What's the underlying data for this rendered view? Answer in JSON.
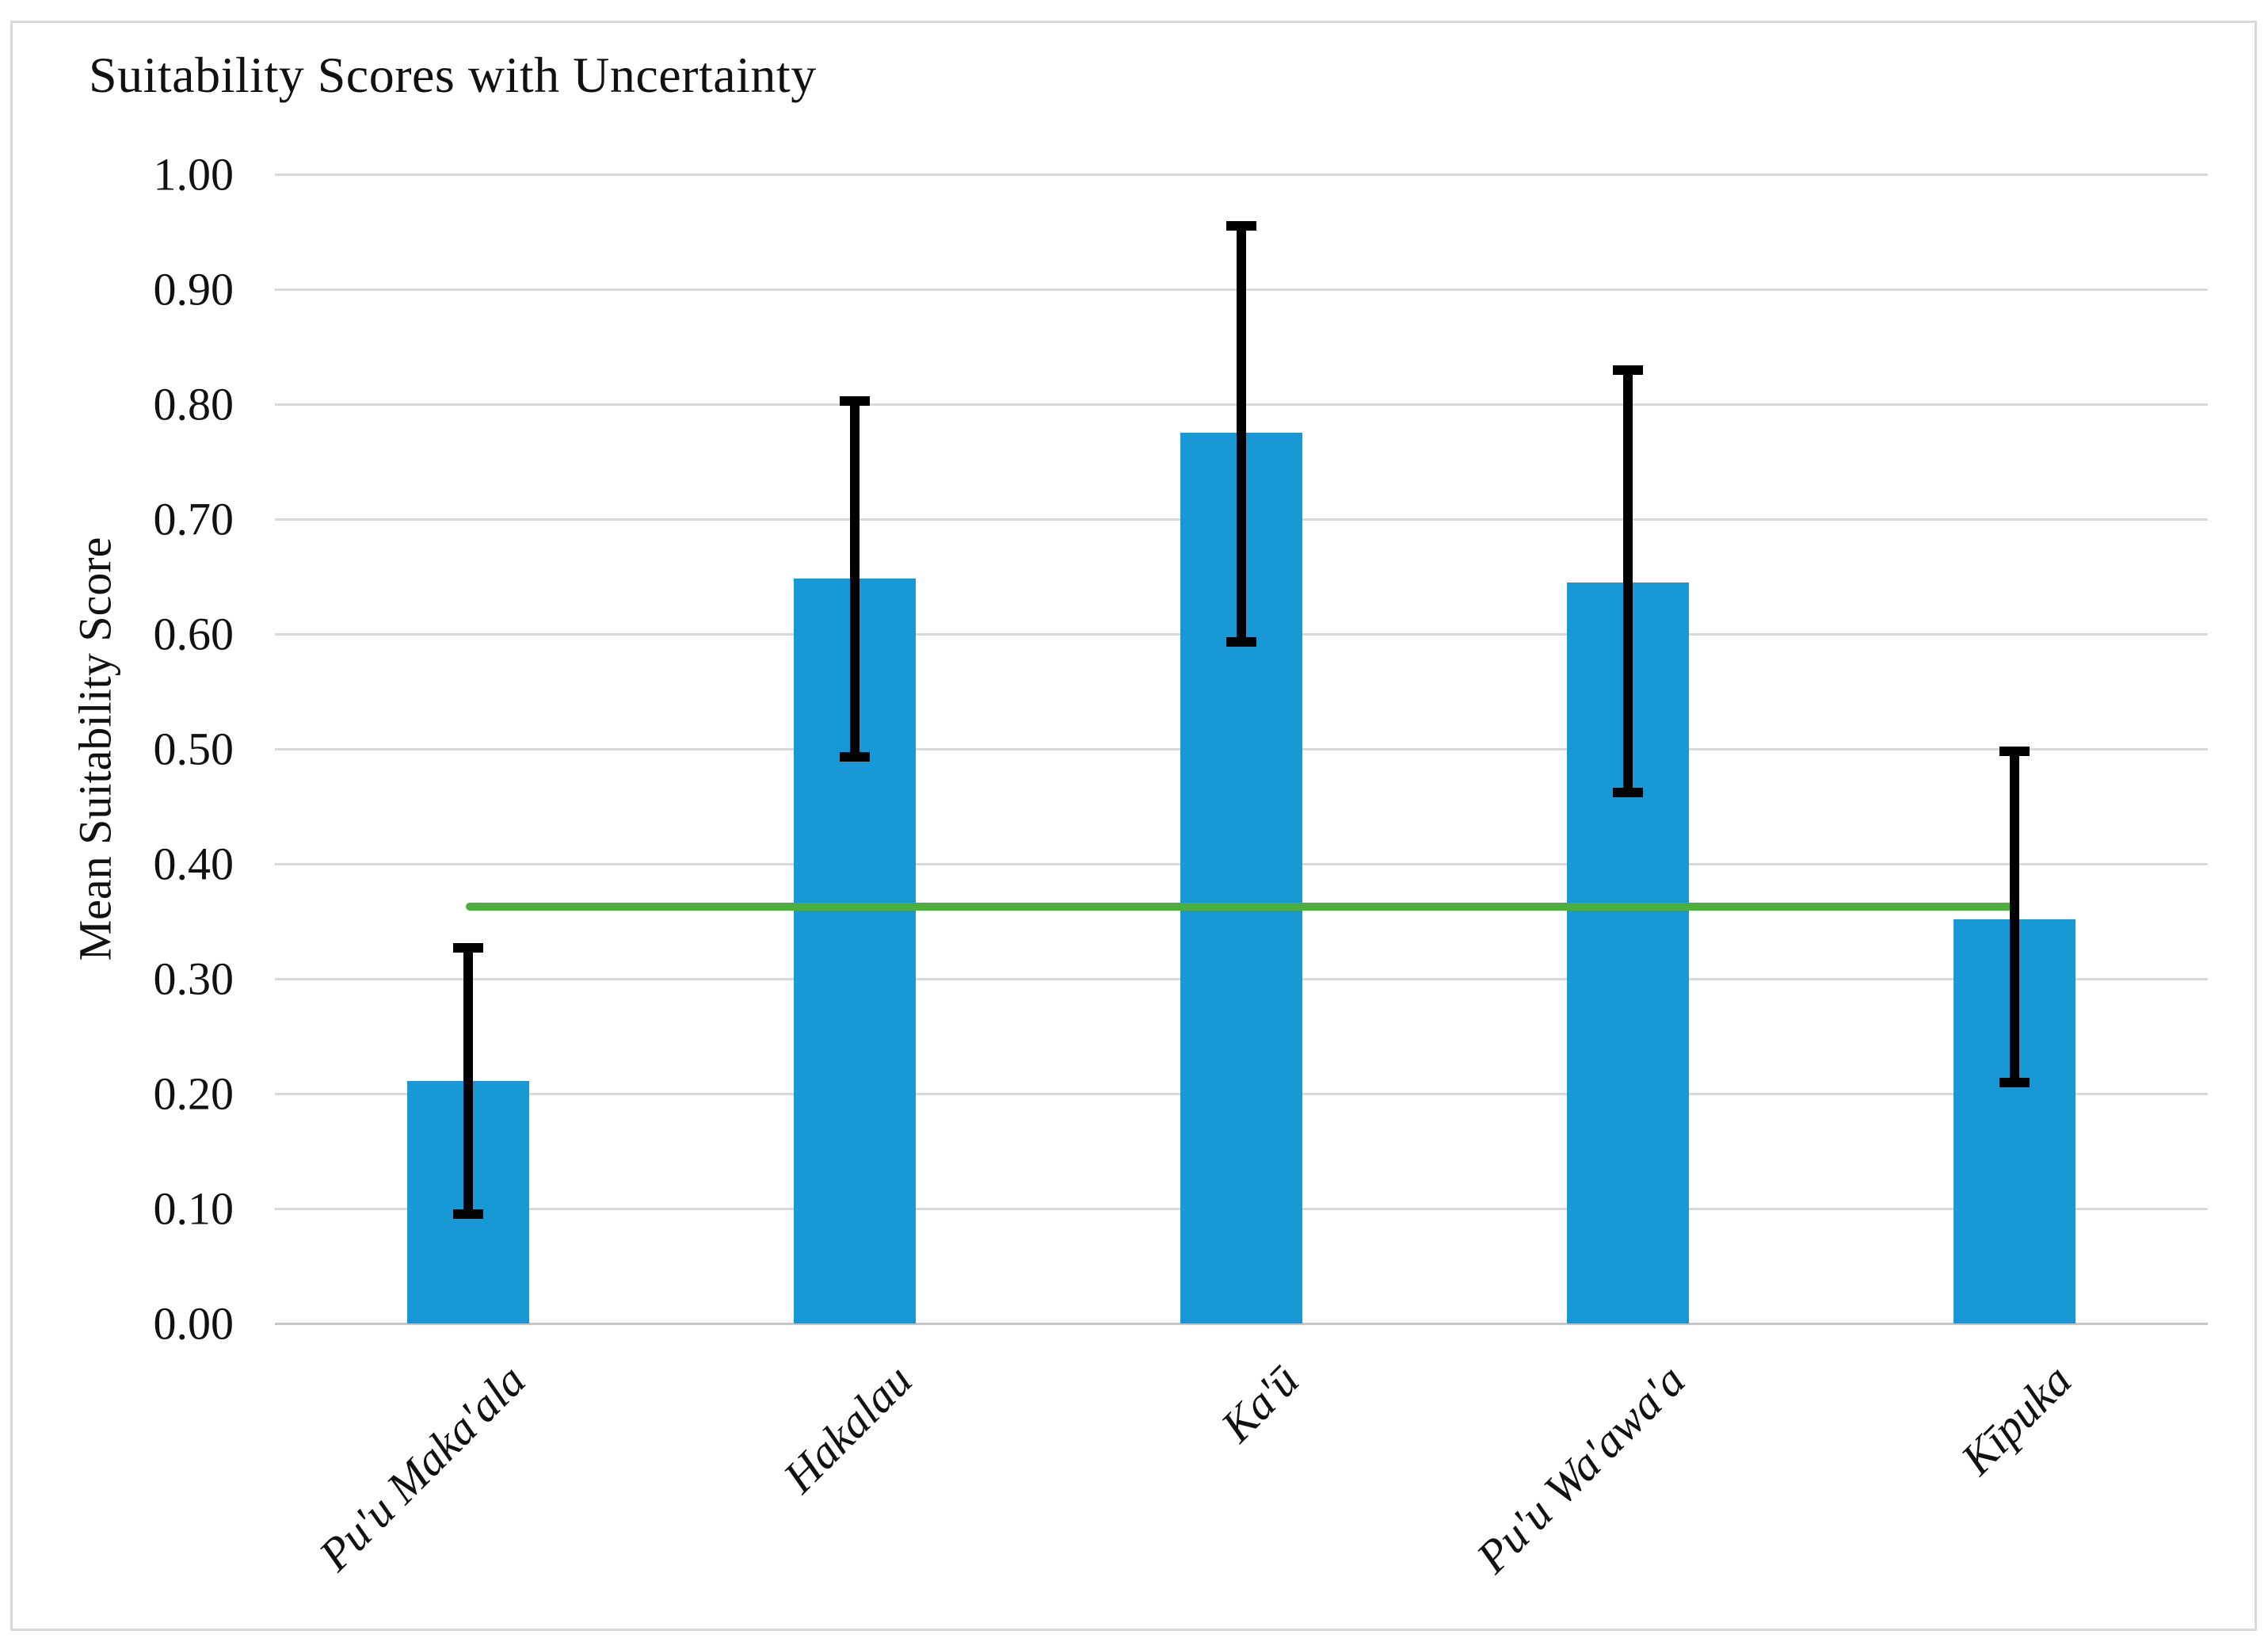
{
  "chart": {
    "title": "Suitability Scores with Uncertainty",
    "y_axis_title": "Mean Suitability Score"
  },
  "chart_data": {
    "type": "bar",
    "title": "Suitability Scores with Uncertainty",
    "xlabel": "",
    "ylabel": "Mean Suitability Score",
    "categories": [
      "Pu'u Maka'ala",
      "Hakalau",
      "Ka'ū",
      "Pu'u Wa'awa'a",
      "Kīpuka"
    ],
    "series": [
      {
        "name": "Mean Suitability Score",
        "type": "bar",
        "color": "#1899D6",
        "values": [
          0.211,
          0.648,
          0.775,
          0.645,
          0.352
        ],
        "error_bars": {
          "upper": [
            0.327,
            0.803,
            0.955,
            0.83,
            0.498
          ],
          "lower": [
            0.095,
            0.493,
            0.593,
            0.462,
            0.21
          ],
          "color": "#000000"
        }
      },
      {
        "name": "Threshold line",
        "type": "line",
        "color": "#4CAE3C",
        "values": [
          0.363,
          0.363,
          0.363,
          0.363,
          0.363
        ]
      }
    ],
    "ylim": [
      0.0,
      1.0
    ],
    "y_ticks": [
      {
        "value": 1.0,
        "label": "1.00"
      },
      {
        "value": 0.9,
        "label": "0.90"
      },
      {
        "value": 0.8,
        "label": "0.80"
      },
      {
        "value": 0.7,
        "label": "0.70"
      },
      {
        "value": 0.6,
        "label": "0.60"
      },
      {
        "value": 0.5,
        "label": "0.50"
      },
      {
        "value": 0.4,
        "label": "0.40"
      },
      {
        "value": 0.3,
        "label": "0.30"
      },
      {
        "value": 0.2,
        "label": "0.20"
      },
      {
        "value": 0.1,
        "label": "0.10"
      },
      {
        "value": 0.0,
        "label": "0.00"
      }
    ],
    "grid": true,
    "gridline_color": "#D9D9D9",
    "legend_position": "none"
  }
}
